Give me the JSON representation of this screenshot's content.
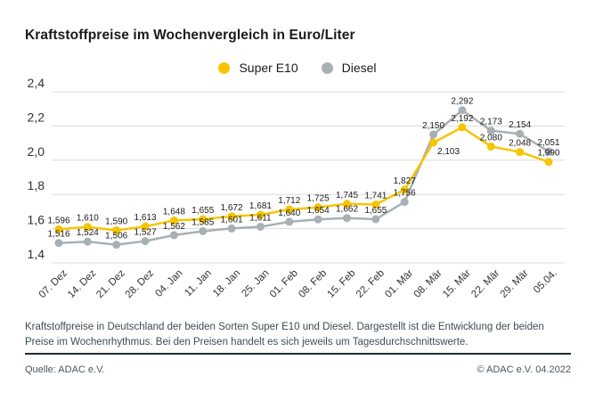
{
  "header": {
    "title": "Kraftstoffpreise im Wochenvergleich in Euro/Liter"
  },
  "legend": [
    {
      "label": "Super E10",
      "color": "#F6C500"
    },
    {
      "label": "Diesel",
      "color": "#A8B0B4"
    }
  ],
  "chart_data": {
    "type": "line",
    "title": "Kraftstoffpreise im Wochenvergleich in Euro/Liter",
    "categories": [
      "07. Dez",
      "14. Dez",
      "21. Dez",
      "28. Dez",
      "04. Jan",
      "11. Jan",
      "18. Jan",
      "25. Jan",
      "01. Feb",
      "08. Feb",
      "15. Feb",
      "22. Feb",
      "01. Mär",
      "08. Mär",
      "15. Mär",
      "22. Mär",
      "29. Mär",
      "05.04."
    ],
    "series": [
      {
        "name": "Super E10",
        "color": "#F6C500",
        "values": [
          1.596,
          1.61,
          1.59,
          1.613,
          1.648,
          1.655,
          1.672,
          1.681,
          1.712,
          1.725,
          1.745,
          1.741,
          1.827,
          2.103,
          2.192,
          2.08,
          2.048,
          1.99
        ]
      },
      {
        "name": "Diesel",
        "color": "#A8B0B4",
        "values": [
          1.516,
          1.524,
          1.506,
          1.527,
          1.562,
          1.585,
          1.601,
          1.611,
          1.64,
          1.654,
          1.662,
          1.655,
          1.756,
          2.15,
          2.292,
          2.173,
          2.154,
          2.051
        ]
      }
    ],
    "ylim": [
      1.4,
      2.4
    ],
    "yticks": [
      2.4,
      2.2,
      2.0,
      1.8,
      1.6,
      1.4
    ],
    "decimal_separator": ",",
    "grid": true,
    "value_labels": true,
    "legend_position": "top",
    "gridline_color": "#dcdcdc",
    "axis_label_color": "#333333",
    "value_label_color": "#1a1a1a"
  },
  "footer": {
    "description": "Kraftstoffpreise in Deutschland der beiden Sorten Super E10 und Diesel. Dargestellt ist die Entwicklung der beiden Preise im Wochenrhythmus. Bei den Preisen handelt es sich jeweils um Tagesdurchschnittswerte.",
    "source": "Quelle: ADAC e.V.",
    "copyright": "© ADAC e.V. 04.2022"
  }
}
